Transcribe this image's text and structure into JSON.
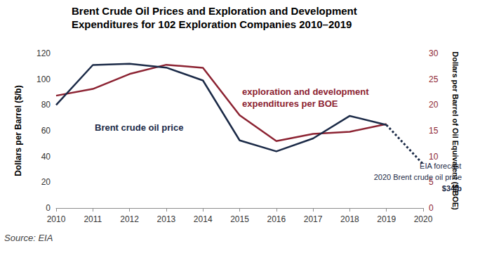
{
  "chart_data": {
    "type": "line",
    "title": "Brent Crude Oil Prices and Exploration and Development Expenditures for 102 Exploration Companies 2010–2019",
    "y_label": "Dollars per Barrel ($/b)",
    "y2_label": "Dollars per Barrel of Oil Equivalent ($/BOE)",
    "source": "Source: EIA",
    "xlim": [
      2010,
      2020
    ],
    "xticks": [
      2010,
      2011,
      2012,
      2013,
      2014,
      2015,
      2016,
      2017,
      2018,
      2019,
      2020
    ],
    "ylim": [
      0,
      120
    ],
    "yticks": [
      0,
      20,
      40,
      60,
      80,
      100,
      120
    ],
    "y2lim": [
      0,
      30
    ],
    "y2ticks": [
      0,
      5,
      10,
      15,
      20,
      25,
      30
    ],
    "grid": false,
    "series": [
      {
        "name": "Brent crude oil price",
        "color": "#1b2a47",
        "line_style": "solid",
        "x": [
          2010,
          2011,
          2012,
          2013,
          2014,
          2015,
          2016,
          2017,
          2018,
          2019
        ],
        "values": [
          80,
          111,
          112,
          109,
          99,
          52.5,
          44,
          54,
          71.5,
          64.5
        ]
      },
      {
        "name": "exploration and development expenditures per BOE",
        "color": "#8c2332",
        "line_style": "solid",
        "axis": "y2",
        "x": [
          2010,
          2011,
          2012,
          2013,
          2014,
          2015,
          2016,
          2017,
          2018,
          2019
        ],
        "values": [
          21.8,
          23.1,
          26,
          27.8,
          27.2,
          18,
          13,
          14.4,
          14.8,
          16.3
        ]
      },
      {
        "color": "#1b2a47",
        "line_style": "dotted",
        "x": [
          2019,
          2020
        ],
        "values": [
          64.5,
          34
        ]
      }
    ],
    "annotations": [
      "EIA forecast",
      "2020 Brent crude oil price",
      "$34/b"
    ]
  }
}
